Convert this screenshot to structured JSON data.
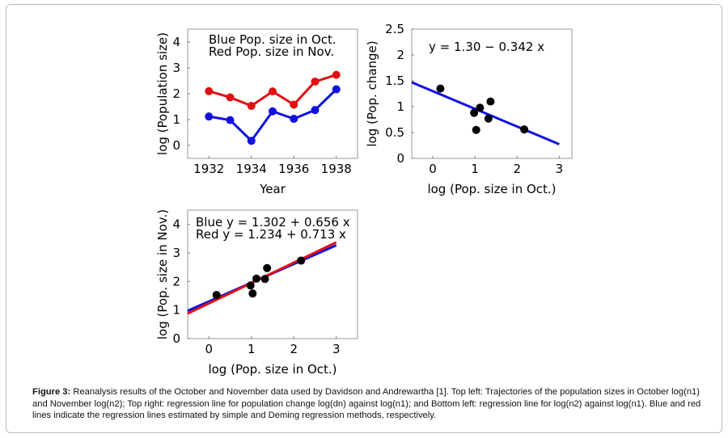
{
  "chart_data": [
    {
      "type": "line",
      "xlabel": "Year",
      "ylabel": "log (Population size)",
      "xlim": [
        1931,
        1939
      ],
      "ylim": [
        -0.5,
        4.5
      ],
      "xticks": [
        1932,
        1934,
        1936,
        1938
      ],
      "yticks": [
        0,
        1,
        2,
        3,
        4
      ],
      "x": [
        1932,
        1933,
        1934,
        1935,
        1936,
        1937,
        1938
      ],
      "legend": [
        "Blue  Pop. size in Oct.",
        "Red   Pop. size in Nov."
      ],
      "series": [
        {
          "name": "Pop. size in Oct.",
          "color": "#1010e0",
          "values": [
            1.12,
            0.98,
            0.18,
            1.32,
            1.03,
            1.37,
            2.17
          ]
        },
        {
          "name": "Pop. size in Nov.",
          "color": "#e01010",
          "values": [
            2.1,
            1.86,
            1.53,
            2.09,
            1.58,
            2.47,
            2.73
          ]
        }
      ]
    },
    {
      "type": "scatter",
      "xlabel": "log (Pop. size in Oct.)",
      "ylabel": "log (Pop. change)",
      "xlim": [
        -0.5,
        3.3
      ],
      "ylim": [
        0,
        2.5
      ],
      "xticks": [
        0,
        1,
        2,
        3
      ],
      "yticks": [
        "0",
        "0.5",
        "1",
        "1.5",
        "2",
        "2.5"
      ],
      "points": {
        "x": [
          0.18,
          0.98,
          1.03,
          1.12,
          1.32,
          1.37,
          2.17
        ],
        "y": [
          1.35,
          0.88,
          0.55,
          0.98,
          0.77,
          1.1,
          0.56
        ]
      },
      "annotation": "y = 1.30 − 0.342 x",
      "lines": [
        {
          "intercept": 1.3,
          "slope": -0.342,
          "color": "#1010e0",
          "x_range": [
            -0.5,
            3
          ]
        }
      ]
    },
    {
      "type": "scatter",
      "xlabel": "log (Pop. size in Oct.)",
      "ylabel": "log (Pop. size in Nov.)",
      "xlim": [
        -0.5,
        3.5
      ],
      "ylim": [
        0,
        4.5
      ],
      "xticks": [
        0,
        1,
        2,
        3
      ],
      "yticks": [
        0,
        1,
        2,
        3,
        4
      ],
      "points": {
        "x": [
          0.18,
          0.98,
          1.03,
          1.12,
          1.32,
          1.37,
          2.17
        ],
        "y": [
          1.53,
          1.86,
          1.58,
          2.1,
          2.09,
          2.47,
          2.73
        ]
      },
      "annotation": [
        "Blue   y = 1.302 + 0.656 x",
        "Red    y = 1.234 + 0.713 x"
      ],
      "lines": [
        {
          "intercept": 1.302,
          "slope": 0.656,
          "color": "#1010e0",
          "x_range": [
            -0.5,
            3
          ]
        },
        {
          "intercept": 1.234,
          "slope": 0.713,
          "color": "#e01010",
          "x_range": [
            -0.5,
            3
          ]
        }
      ]
    }
  ],
  "caption": {
    "label": "Figure 3:",
    "text": " Reanalysis results of the October and November data used by Davidson and Andrewartha [1]. Top left: Trajectories of the population sizes in October log(n1) and November log(n2); Top right: regression line for population change log(dn) against log(n1); and Bottom left: regression line for log(n2) against log(n1). Blue and red lines indicate the regression lines estimated by simple and Deming regression methods, respectively."
  }
}
